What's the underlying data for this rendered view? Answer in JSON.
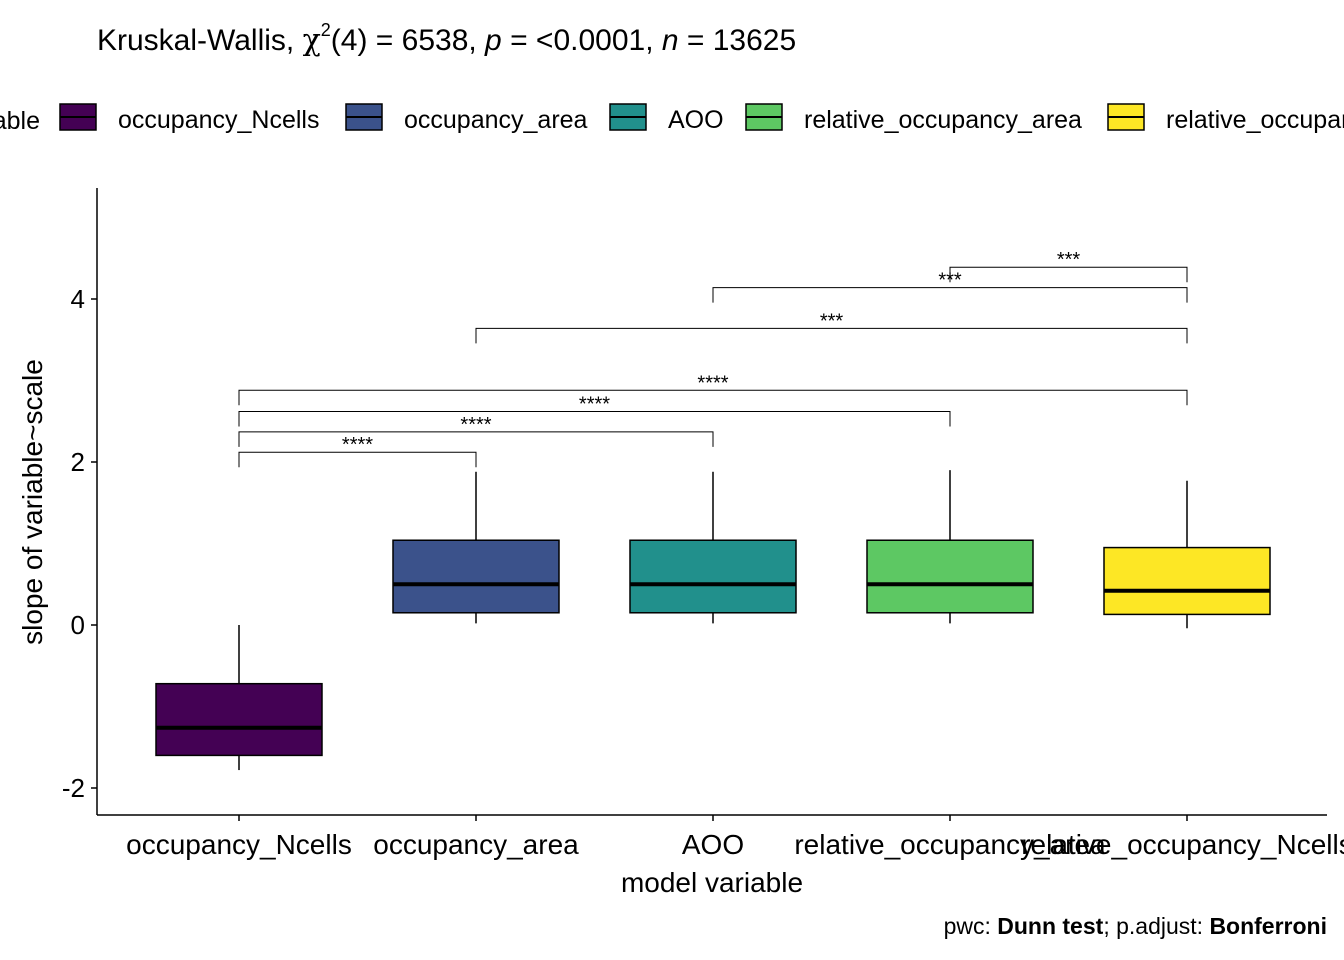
{
  "title": {
    "prefix": "Kruskal-Wallis, ",
    "chi": "χ",
    "chi_sup": "2",
    "df_part": "(4) = 6538, ",
    "p_label": "p",
    "p_part": " = <0.0001, ",
    "n_label": "n",
    "n_part": " = 13625"
  },
  "legend": {
    "title": "model variable",
    "items": [
      {
        "label": "occupancy_Ncells",
        "color": "#440154"
      },
      {
        "label": "occupancy_area",
        "color": "#3B528B"
      },
      {
        "label": "AOO",
        "color": "#21908C"
      },
      {
        "label": "relative_occupancy_area",
        "color": "#5DC863"
      },
      {
        "label": "relative_occupancy_Ncells",
        "color": "#FDE725"
      }
    ]
  },
  "caption": {
    "pwc_label": "pwc: ",
    "pwc_value": "Dunn test",
    "sep": "; p.adjust: ",
    "adjust_value": "Bonferroni"
  },
  "chart_data": {
    "type": "boxplot",
    "xlabel": "model variable",
    "ylabel": "slope of variable~scale",
    "categories": [
      "occupancy_Ncells",
      "occupancy_area",
      "AOO",
      "relative_occupancy_area",
      "relative_occupancy_Ncells"
    ],
    "ylim": [
      -2.3,
      5.3
    ],
    "yticks": [
      -2,
      0,
      2,
      4
    ],
    "ytick_labels": [
      "-2",
      "0",
      "2",
      "4"
    ],
    "grid": false,
    "legend_position": "top",
    "boxes": [
      {
        "whisker_low": -1.78,
        "q1": -1.6,
        "median": -1.26,
        "q3": -0.72,
        "whisker_high": 0.0,
        "color": "#440154"
      },
      {
        "whisker_low": 0.02,
        "q1": 0.15,
        "median": 0.5,
        "q3": 1.04,
        "whisker_high": 1.88,
        "color": "#3B528B"
      },
      {
        "whisker_low": 0.02,
        "q1": 0.15,
        "median": 0.5,
        "q3": 1.04,
        "whisker_high": 1.88,
        "color": "#21908C"
      },
      {
        "whisker_low": 0.02,
        "q1": 0.15,
        "median": 0.5,
        "q3": 1.04,
        "whisker_high": 1.9,
        "color": "#5DC863"
      },
      {
        "whisker_low": -0.04,
        "q1": 0.13,
        "median": 0.42,
        "q3": 0.95,
        "whisker_high": 1.77,
        "color": "#FDE725"
      }
    ],
    "comparisons": [
      {
        "group1": 0,
        "group2": 1,
        "y": 2.12,
        "label": "****"
      },
      {
        "group1": 0,
        "group2": 2,
        "y": 2.37,
        "label": "****"
      },
      {
        "group1": 0,
        "group2": 3,
        "y": 2.62,
        "label": "****"
      },
      {
        "group1": 0,
        "group2": 4,
        "y": 2.88,
        "label": "****"
      },
      {
        "group1": 1,
        "group2": 4,
        "y": 3.64,
        "label": "***"
      },
      {
        "group1": 2,
        "group2": 4,
        "y": 4.14,
        "label": "***"
      },
      {
        "group1": 3,
        "group2": 4,
        "y": 4.39,
        "label": "***"
      }
    ]
  }
}
